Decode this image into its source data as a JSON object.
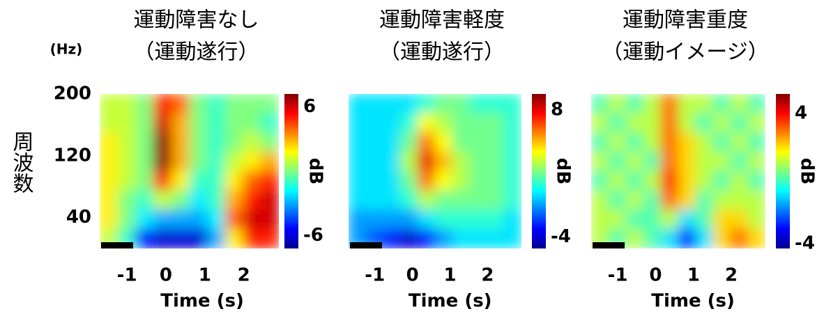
{
  "chart_data": [
    {
      "type": "heatmap",
      "title": "運動障害なし",
      "subtitle": "（運動遂行）",
      "ylabel": "周波数",
      "yunit": "(Hz)",
      "xlabel": "Time (s)",
      "x": [
        -1.47,
        -1.01,
        -0.55,
        -0.09,
        0.37,
        0.83,
        1.29,
        1.75,
        2.21,
        2.67
      ],
      "y": [
        187.5,
        162.5,
        137.5,
        112.5,
        87.5,
        62.5,
        37.5,
        12.5
      ],
      "z": [
        [
          1,
          1,
          0,
          5,
          4,
          0,
          -1,
          0,
          0,
          0
        ],
        [
          1,
          1,
          0,
          6,
          3,
          0,
          -1,
          0,
          0,
          -1
        ],
        [
          2,
          1,
          0,
          7,
          3,
          0,
          -1,
          0,
          1,
          0
        ],
        [
          2,
          1,
          0,
          7,
          3,
          0,
          -1,
          1,
          2,
          3
        ],
        [
          2,
          1,
          0,
          5,
          2,
          -1,
          -1,
          2,
          4,
          5
        ],
        [
          2,
          0,
          -1,
          1,
          0,
          -2,
          -1,
          3,
          5,
          6
        ],
        [
          2,
          0,
          -2,
          -3,
          -3,
          -3,
          -2,
          4,
          6,
          6
        ],
        [
          1,
          -1,
          -5,
          -6,
          -6,
          -6,
          -3,
          2,
          5,
          5
        ]
      ],
      "xlim": [
        -1.7,
        2.9
      ],
      "ylim": [
        0,
        200
      ],
      "xticks": [
        -1,
        0,
        1,
        2
      ],
      "yticks": [
        40,
        120,
        200
      ],
      "clim": [
        -7.2,
        7.2
      ],
      "cticks": [
        -6,
        6
      ],
      "clabel": "dB"
    },
    {
      "type": "heatmap",
      "title": "運動障害軽度",
      "subtitle": "（運動遂行）",
      "xlabel": "Time (s)",
      "x": [
        -1.47,
        -1.01,
        -0.55,
        -0.09,
        0.37,
        0.83,
        1.29,
        1.75,
        2.21,
        2.67
      ],
      "y": [
        187.5,
        162.5,
        137.5,
        112.5,
        87.5,
        62.5,
        37.5,
        12.5
      ],
      "z": [
        [
          0,
          0,
          0,
          0,
          1,
          2,
          2,
          1,
          1,
          1
        ],
        [
          0,
          0,
          0,
          1,
          4,
          3,
          2,
          2,
          2,
          1
        ],
        [
          0,
          0,
          0,
          2,
          6,
          4,
          2,
          2,
          2,
          1
        ],
        [
          0,
          0,
          0,
          3,
          8,
          5,
          3,
          2,
          2,
          1
        ],
        [
          0,
          0,
          0,
          2,
          6,
          4,
          3,
          2,
          2,
          1
        ],
        [
          0,
          0,
          0,
          1,
          3,
          2,
          2,
          2,
          2,
          1
        ],
        [
          -1,
          -1,
          -1,
          -1,
          0,
          1,
          1,
          1,
          1,
          0
        ],
        [
          -1,
          -2,
          -3,
          -4,
          -3,
          -1,
          0,
          0,
          0,
          0
        ]
      ],
      "xlim": [
        -1.7,
        2.9
      ],
      "ylim": [
        0,
        200
      ],
      "xticks": [
        -1,
        0,
        1,
        2
      ],
      "clim": [
        -5.1,
        9.5
      ],
      "cticks": [
        -4,
        8
      ],
      "clabel": "dB"
    },
    {
      "type": "heatmap",
      "title": "運動障害重度",
      "subtitle": "（運動イメージ）",
      "xlabel": "Time (s)",
      "x": [
        -1.47,
        -1.01,
        -0.55,
        -0.09,
        0.37,
        0.83,
        1.29,
        1.75,
        2.21,
        2.67
      ],
      "y": [
        187.5,
        162.5,
        137.5,
        112.5,
        87.5,
        62.5,
        37.5,
        12.5
      ],
      "z": [
        [
          0,
          1,
          0,
          1,
          3,
          1,
          1,
          0,
          1,
          0
        ],
        [
          1,
          0,
          1,
          1,
          3,
          1,
          0,
          1,
          0,
          1
        ],
        [
          0,
          1,
          0,
          1,
          3,
          2,
          1,
          0,
          1,
          0
        ],
        [
          1,
          0,
          1,
          0,
          3,
          2,
          1,
          1,
          0,
          1
        ],
        [
          0,
          1,
          0,
          1,
          4,
          2,
          1,
          0,
          1,
          0
        ],
        [
          1,
          0,
          1,
          0,
          3,
          2,
          0,
          1,
          1,
          1
        ],
        [
          1,
          1,
          0,
          0,
          1,
          -1,
          0,
          2,
          2,
          1
        ],
        [
          1,
          0,
          1,
          0,
          -1,
          -3,
          -1,
          2,
          3,
          2
        ]
      ],
      "xlim": [
        -1.7,
        2.9
      ],
      "ylim": [
        0,
        200
      ],
      "xticks": [
        -1,
        0,
        1,
        2
      ],
      "clim": [
        -4.3,
        5.2
      ],
      "cticks": [
        -4,
        4
      ],
      "clabel": "dB"
    }
  ]
}
